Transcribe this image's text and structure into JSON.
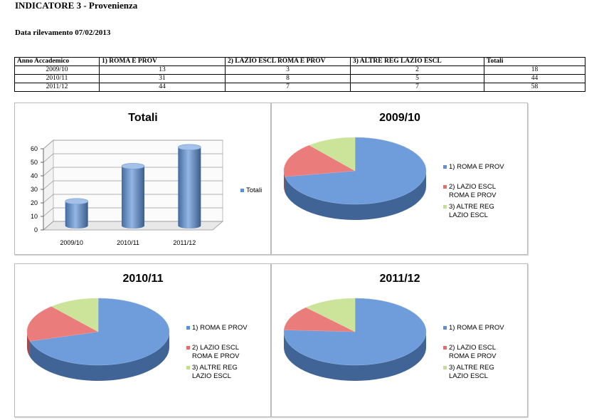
{
  "header": {
    "title": "INDICATORE 3 - Provenienza",
    "date_label": "Data rilevamento 07/02/2013"
  },
  "table": {
    "columns": [
      "Anno Accademico",
      "1) ROMA E PROV",
      "2) LAZIO ESCL ROMA E PROV",
      "3) ALTRE REG LAZIO ESCL",
      "Totali"
    ],
    "rows": [
      [
        "2009/10",
        "13",
        "3",
        "2",
        "18"
      ],
      [
        "2010/11",
        "31",
        "8",
        "5",
        "44"
      ],
      [
        "2011/12",
        "44",
        "7",
        "7",
        "58"
      ]
    ]
  },
  "colors": {
    "series_blue": "#5b8fd6",
    "series_red": "#e86a6a",
    "series_green": "#c4e08c"
  },
  "chart_data": [
    {
      "type": "bar",
      "title": "Totali",
      "categories": [
        "2009/10",
        "2010/11",
        "2011/12"
      ],
      "series": [
        {
          "name": "Totali",
          "values": [
            18,
            44,
            58
          ]
        }
      ],
      "yticks": [
        "0",
        "10",
        "20",
        "30",
        "40",
        "50",
        "60"
      ],
      "ylim": [
        0,
        60
      ],
      "grid": true,
      "legend": "right"
    },
    {
      "type": "pie",
      "title": "2009/10",
      "labels": [
        "1) ROMA E PROV",
        "2) LAZIO ESCL ROMA E PROV",
        "3) ALTRE REG LAZIO ESCL"
      ],
      "values": [
        13,
        3,
        2
      ],
      "legend": "right"
    },
    {
      "type": "pie",
      "title": "2010/11",
      "labels": [
        "1) ROMA E PROV",
        "2) LAZIO ESCL ROMA E PROV",
        "3) ALTRE REG LAZIO ESCL"
      ],
      "values": [
        31,
        8,
        5
      ],
      "legend": "right"
    },
    {
      "type": "pie",
      "title": "2011/12",
      "labels": [
        "1) ROMA E PROV",
        "2) LAZIO ESCL ROMA E PROV",
        "3) ALTRE REG LAZIO ESCL"
      ],
      "values": [
        44,
        7,
        7
      ],
      "legend": "right"
    }
  ]
}
